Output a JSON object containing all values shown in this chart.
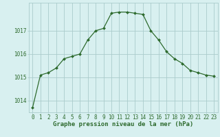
{
  "x": [
    0,
    1,
    2,
    3,
    4,
    5,
    6,
    7,
    8,
    9,
    10,
    11,
    12,
    13,
    14,
    15,
    16,
    17,
    18,
    19,
    20,
    21,
    22,
    23
  ],
  "y": [
    1013.7,
    1015.1,
    1015.2,
    1015.4,
    1015.8,
    1015.9,
    1016.0,
    1016.6,
    1017.0,
    1017.1,
    1017.75,
    1017.8,
    1017.8,
    1017.75,
    1017.7,
    1017.0,
    1016.6,
    1016.1,
    1015.8,
    1015.6,
    1015.3,
    1015.2,
    1015.1,
    1015.05
  ],
  "line_color": "#2d6a2d",
  "marker": "D",
  "marker_size": 2.0,
  "bg_color": "#d8f0f0",
  "grid_color": "#aacccc",
  "tick_label_color": "#2d6a2d",
  "xlabel": "Graphe pression niveau de la mer (hPa)",
  "xlabel_color": "#2d6a2d",
  "xlabel_fontsize": 6.5,
  "tick_fontsize": 5.5,
  "ylim": [
    1013.5,
    1018.2
  ],
  "yticks": [
    1014,
    1015,
    1016,
    1017
  ],
  "xlim": [
    -0.5,
    23.5
  ]
}
